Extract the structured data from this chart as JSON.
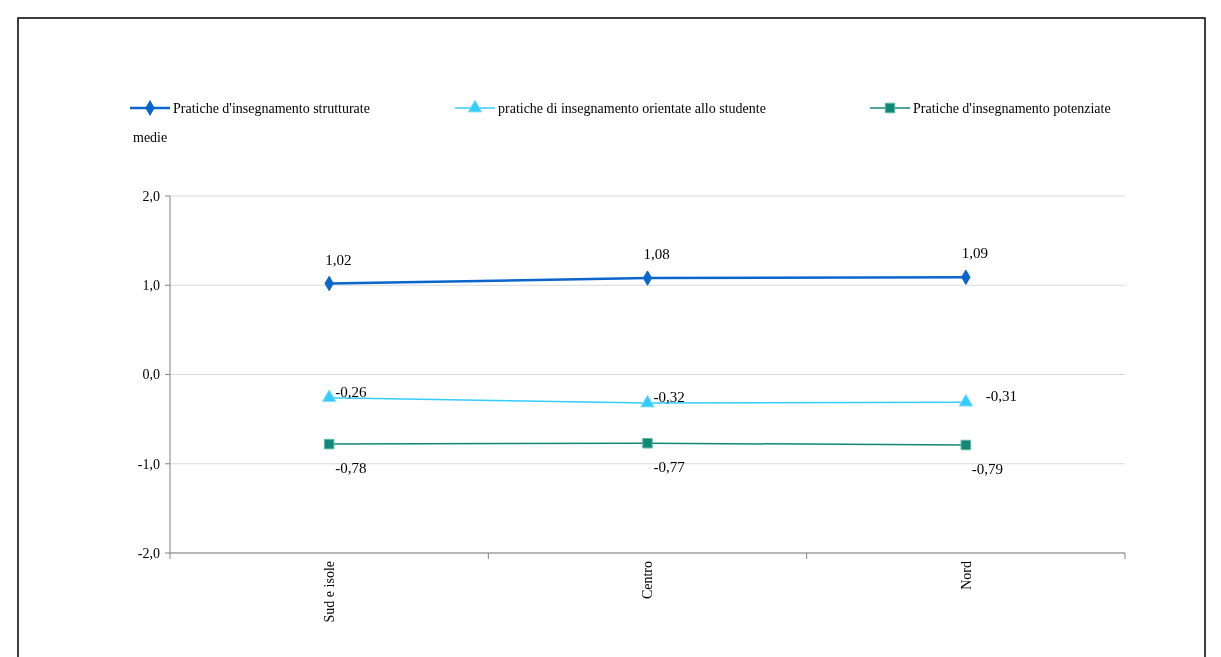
{
  "chart_data": {
    "type": "line",
    "ylabel": "medie",
    "categories": [
      "Sud e isole",
      "Centro",
      "Nord"
    ],
    "series": [
      {
        "name": "Pratiche d'insegnamento strutturate",
        "color": "#0a66cc",
        "values": [
          1.02,
          1.08,
          1.09
        ],
        "value_labels": [
          "1,02",
          "1,08",
          "1,09"
        ],
        "marker": "diamond"
      },
      {
        "name": "pratiche di insegnamento orientate allo studente",
        "color": "#33ccff",
        "values": [
          -0.26,
          -0.32,
          -0.31
        ],
        "value_labels": [
          "-0,26",
          "-0,32",
          "-0,31"
        ],
        "marker": "triangle"
      },
      {
        "name": "Pratiche d'insegnamento potenziate",
        "color": "#118877",
        "values": [
          -0.78,
          -0.77,
          -0.79
        ],
        "value_labels": [
          "-0,78",
          "-0,77",
          "-0,79"
        ],
        "marker": "square"
      }
    ],
    "ylim": [
      -2,
      2
    ],
    "yticks": [
      {
        "value": -2,
        "label": "-2,0"
      },
      {
        "value": -1,
        "label": "-1,0"
      },
      {
        "value": 0,
        "label": "0,0"
      },
      {
        "value": 1,
        "label": "1,0"
      },
      {
        "value": 2,
        "label": "2,0"
      }
    ],
    "grid": "y",
    "legend": "top"
  }
}
